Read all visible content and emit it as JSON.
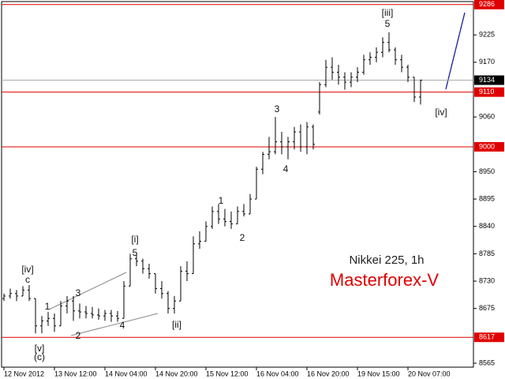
{
  "chart_data": {
    "type": "ohlc",
    "title": "Nikkei 225, 1h",
    "subtitle": "Masterforex-V",
    "categories": [
      "12 Nov 2012",
      null,
      null,
      null,
      null,
      null,
      null,
      null,
      "13 Nov 12:00",
      null,
      null,
      null,
      null,
      null,
      null,
      null,
      "14 Nov 04:00",
      null,
      null,
      null,
      null,
      null,
      null,
      null,
      "14 Nov 20:00",
      null,
      null,
      null,
      null,
      null,
      null,
      null,
      "15 Nov 12:00",
      null,
      null,
      null,
      null,
      null,
      null,
      null,
      "16 Nov 04:00",
      null,
      null,
      null,
      null,
      null,
      null,
      null,
      "16 Nov 20:00",
      null,
      null,
      null,
      null,
      null,
      null,
      null,
      "19 Nov 15:00",
      null,
      null,
      null,
      null,
      null,
      null,
      null,
      "20 Nov 07:00",
      null,
      null
    ],
    "open": [
      8695,
      8700,
      8705,
      8700,
      8712,
      8695,
      8640,
      8650,
      8655,
      8640,
      8680,
      8690,
      8670,
      8668,
      8665,
      8662,
      8660,
      8665,
      8660,
      8655,
      8720,
      8775,
      8770,
      8755,
      8745,
      8715,
      8705,
      8675,
      8690,
      8750,
      8745,
      8805,
      8810,
      8840,
      8870,
      8855,
      8850,
      8845,
      8870,
      8865,
      8895,
      8955,
      8985,
      8990,
      9010,
      9000,
      9010,
      9030,
      9000,
      9040,
      9070,
      9125,
      9160,
      9150,
      9140,
      9130,
      9140,
      9150,
      9175,
      9180,
      9190,
      9210,
      9195,
      9175,
      9160,
      9140,
      9100
    ],
    "high": [
      8705,
      8715,
      8712,
      8720,
      8722,
      8695,
      8660,
      8668,
      8665,
      8690,
      8700,
      8700,
      8685,
      8680,
      8678,
      8675,
      8672,
      8672,
      8670,
      8730,
      8785,
      8785,
      8775,
      8765,
      8745,
      8730,
      8710,
      8700,
      8760,
      8770,
      8820,
      8830,
      8850,
      8880,
      8885,
      8875,
      8870,
      8880,
      8885,
      8905,
      8960,
      8990,
      9020,
      9060,
      9030,
      9020,
      9040,
      9045,
      9050,
      9045,
      9130,
      9175,
      9180,
      9165,
      9150,
      9150,
      9160,
      9185,
      9190,
      9200,
      9220,
      9230,
      9200,
      9185,
      9165,
      9140,
      9135
    ],
    "low": [
      8690,
      8695,
      8690,
      8700,
      8690,
      8625,
      8625,
      8640,
      8628,
      8640,
      8665,
      8650,
      8655,
      8655,
      8655,
      8652,
      8650,
      8648,
      8648,
      8655,
      8720,
      8760,
      8745,
      8735,
      8705,
      8695,
      8665,
      8665,
      8690,
      8730,
      8745,
      8795,
      8810,
      8835,
      8845,
      8840,
      8835,
      8845,
      8860,
      8865,
      8895,
      8945,
      8975,
      8985,
      8985,
      8975,
      8995,
      8990,
      8985,
      8995,
      9065,
      9120,
      9135,
      9125,
      9115,
      9120,
      9130,
      9145,
      9165,
      9170,
      9180,
      9190,
      9165,
      9150,
      9130,
      9090,
      9085
    ],
    "close": [
      8700,
      8705,
      8700,
      8712,
      8695,
      8640,
      8650,
      8655,
      8640,
      8680,
      8690,
      8670,
      8668,
      8665,
      8662,
      8660,
      8665,
      8660,
      8655,
      8720,
      8775,
      8770,
      8755,
      8745,
      8715,
      8705,
      8675,
      8690,
      8750,
      8745,
      8805,
      8810,
      8840,
      8870,
      8855,
      8850,
      8845,
      8870,
      8865,
      8895,
      8955,
      8985,
      8990,
      9010,
      9000,
      9010,
      9030,
      9000,
      9040,
      9005,
      9125,
      9160,
      9150,
      9140,
      9130,
      9140,
      9150,
      9175,
      9180,
      9190,
      9210,
      9195,
      9175,
      9160,
      9140,
      9100,
      9134
    ],
    "color": "#000000",
    "ylim": [
      8557,
      9292
    ],
    "yticks": [
      8565,
      8675,
      8730,
      8785,
      8840,
      8895,
      8950,
      9060,
      9170,
      9225
    ],
    "levels": [
      9286,
      9110,
      9000,
      8617
    ],
    "level_color": "#e00000",
    "current_price": 9134,
    "annotations": [
      "[iv]",
      "c",
      "1",
      "3",
      "2",
      "4",
      "[v]",
      "(c)",
      "[i]",
      "5",
      "[ii]",
      "1",
      "2",
      "3",
      "4",
      "[iii]",
      "5",
      "[iv]"
    ]
  }
}
